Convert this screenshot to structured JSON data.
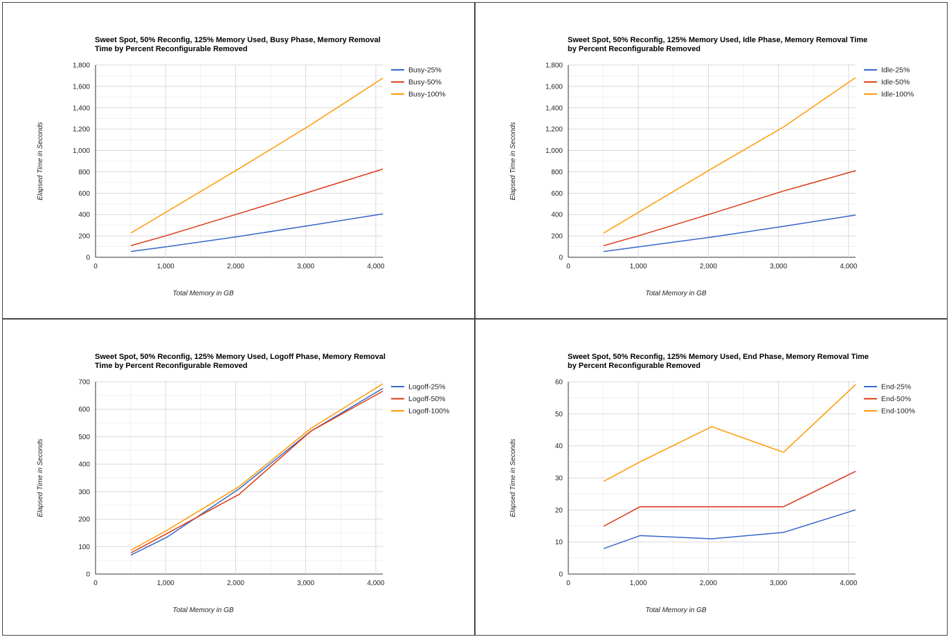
{
  "chart_data": [
    {
      "type": "line",
      "title_lines": [
        "Sweet Spot, 50% Reconfig, 125% Memory Used, Busy Phase, Memory Removal",
        "Time by Percent Reconfigurable Removed"
      ],
      "xlabel": "Total Memory in GB",
      "ylabel": "Elapsed Time in Seconds",
      "xlim": [
        0,
        4100
      ],
      "ylim": [
        0,
        1800
      ],
      "x_ticks": [
        0,
        1000,
        2000,
        3000,
        4000
      ],
      "y_ticks": [
        0,
        200,
        400,
        600,
        800,
        1000,
        1200,
        1400,
        1600,
        1800
      ],
      "x_tick_labels": [
        "0",
        "1,000",
        "2,000",
        "3,000",
        "4,000"
      ],
      "y_tick_labels": [
        "0",
        "200",
        "400",
        "600",
        "800",
        "1,000",
        "1,200",
        "1,400",
        "1,600",
        "1,800"
      ],
      "grid": true,
      "legend_position": "right",
      "x": [
        512,
        1024,
        2048,
        3072,
        4096
      ],
      "series": [
        {
          "name": "Busy-25%",
          "color": "#3366cc",
          "values": [
            55,
            100,
            195,
            300,
            405
          ]
        },
        {
          "name": "Busy-50%",
          "color": "#dc3912",
          "values": [
            110,
            205,
            410,
            615,
            825
          ]
        },
        {
          "name": "Busy-100%",
          "color": "#ff9900",
          "values": [
            230,
            430,
            830,
            1240,
            1675
          ]
        }
      ]
    },
    {
      "type": "line",
      "title_lines": [
        "Sweet Spot, 50% Reconfig, 125% Memory Used, Idle Phase, Memory Removal Time",
        "by Percent Reconfigurable Removed"
      ],
      "xlabel": "Total Memory in GB",
      "ylabel": "Elapsed Time in Seconds",
      "xlim": [
        0,
        4100
      ],
      "ylim": [
        0,
        1800
      ],
      "x_ticks": [
        0,
        1000,
        2000,
        3000,
        4000
      ],
      "y_ticks": [
        0,
        200,
        400,
        600,
        800,
        1000,
        1200,
        1400,
        1600,
        1800
      ],
      "x_tick_labels": [
        "0",
        "1,000",
        "2,000",
        "3,000",
        "4,000"
      ],
      "y_tick_labels": [
        "0",
        "200",
        "400",
        "600",
        "800",
        "1,000",
        "1,200",
        "1,400",
        "1,600",
        "1,800"
      ],
      "grid": true,
      "legend_position": "right",
      "x": [
        512,
        1024,
        2048,
        3072,
        4096
      ],
      "series": [
        {
          "name": "Idle-25%",
          "color": "#3366cc",
          "values": [
            55,
            100,
            190,
            290,
            395
          ]
        },
        {
          "name": "Idle-50%",
          "color": "#dc3912",
          "values": [
            110,
            205,
            410,
            620,
            810
          ]
        },
        {
          "name": "Idle-100%",
          "color": "#ff9900",
          "values": [
            230,
            430,
            830,
            1220,
            1680
          ]
        }
      ]
    },
    {
      "type": "line",
      "title_lines": [
        "Sweet Spot, 50% Reconfig, 125% Memory Used, Logoff Phase, Memory Removal",
        "Time by Percent Reconfigurable Removed"
      ],
      "xlabel": "Total Memory in GB",
      "ylabel": "Elapsed Time in Seconds",
      "xlim": [
        0,
        4100
      ],
      "ylim": [
        0,
        700
      ],
      "x_ticks": [
        0,
        1000,
        2000,
        3000,
        4000
      ],
      "y_ticks": [
        0,
        100,
        200,
        300,
        400,
        500,
        600,
        700
      ],
      "x_tick_labels": [
        "0",
        "1,000",
        "2,000",
        "3,000",
        "4,000"
      ],
      "y_tick_labels": [
        "0",
        "100",
        "200",
        "300",
        "400",
        "500",
        "600",
        "700"
      ],
      "grid": true,
      "legend_position": "right",
      "x": [
        512,
        1024,
        2048,
        3072,
        4096
      ],
      "series": [
        {
          "name": "Logoff-25%",
          "color": "#3366cc",
          "values": [
            70,
            135,
            310,
            520,
            675
          ]
        },
        {
          "name": "Logoff-50%",
          "color": "#dc3912",
          "values": [
            78,
            148,
            290,
            520,
            665
          ]
        },
        {
          "name": "Logoff-100%",
          "color": "#ff9900",
          "values": [
            88,
            160,
            318,
            530,
            692
          ]
        }
      ]
    },
    {
      "type": "line",
      "title_lines": [
        "Sweet Spot, 50% Reconfig, 125% Memory Used, End Phase, Memory Removal Time",
        "by Percent Reconfigurable Removed"
      ],
      "xlabel": "Total Memory in GB",
      "ylabel": "Elapsed Time in Seconds",
      "xlim": [
        0,
        4100
      ],
      "ylim": [
        0,
        60
      ],
      "x_ticks": [
        0,
        1000,
        2000,
        3000,
        4000
      ],
      "y_ticks": [
        0,
        10,
        20,
        30,
        40,
        50,
        60
      ],
      "x_tick_labels": [
        "0",
        "1,000",
        "2,000",
        "3,000",
        "4,000"
      ],
      "y_tick_labels": [
        "0",
        "10",
        "20",
        "30",
        "40",
        "50",
        "60"
      ],
      "grid": true,
      "legend_position": "right",
      "x": [
        512,
        1024,
        2048,
        3072,
        4096
      ],
      "series": [
        {
          "name": "End-25%",
          "color": "#3366cc",
          "values": [
            8,
            12,
            11,
            13,
            20
          ]
        },
        {
          "name": "End-50%",
          "color": "#dc3912",
          "values": [
            15,
            21,
            21,
            21,
            32
          ]
        },
        {
          "name": "End-100%",
          "color": "#ff9900",
          "values": [
            29,
            35,
            46,
            38,
            59
          ]
        }
      ]
    }
  ]
}
